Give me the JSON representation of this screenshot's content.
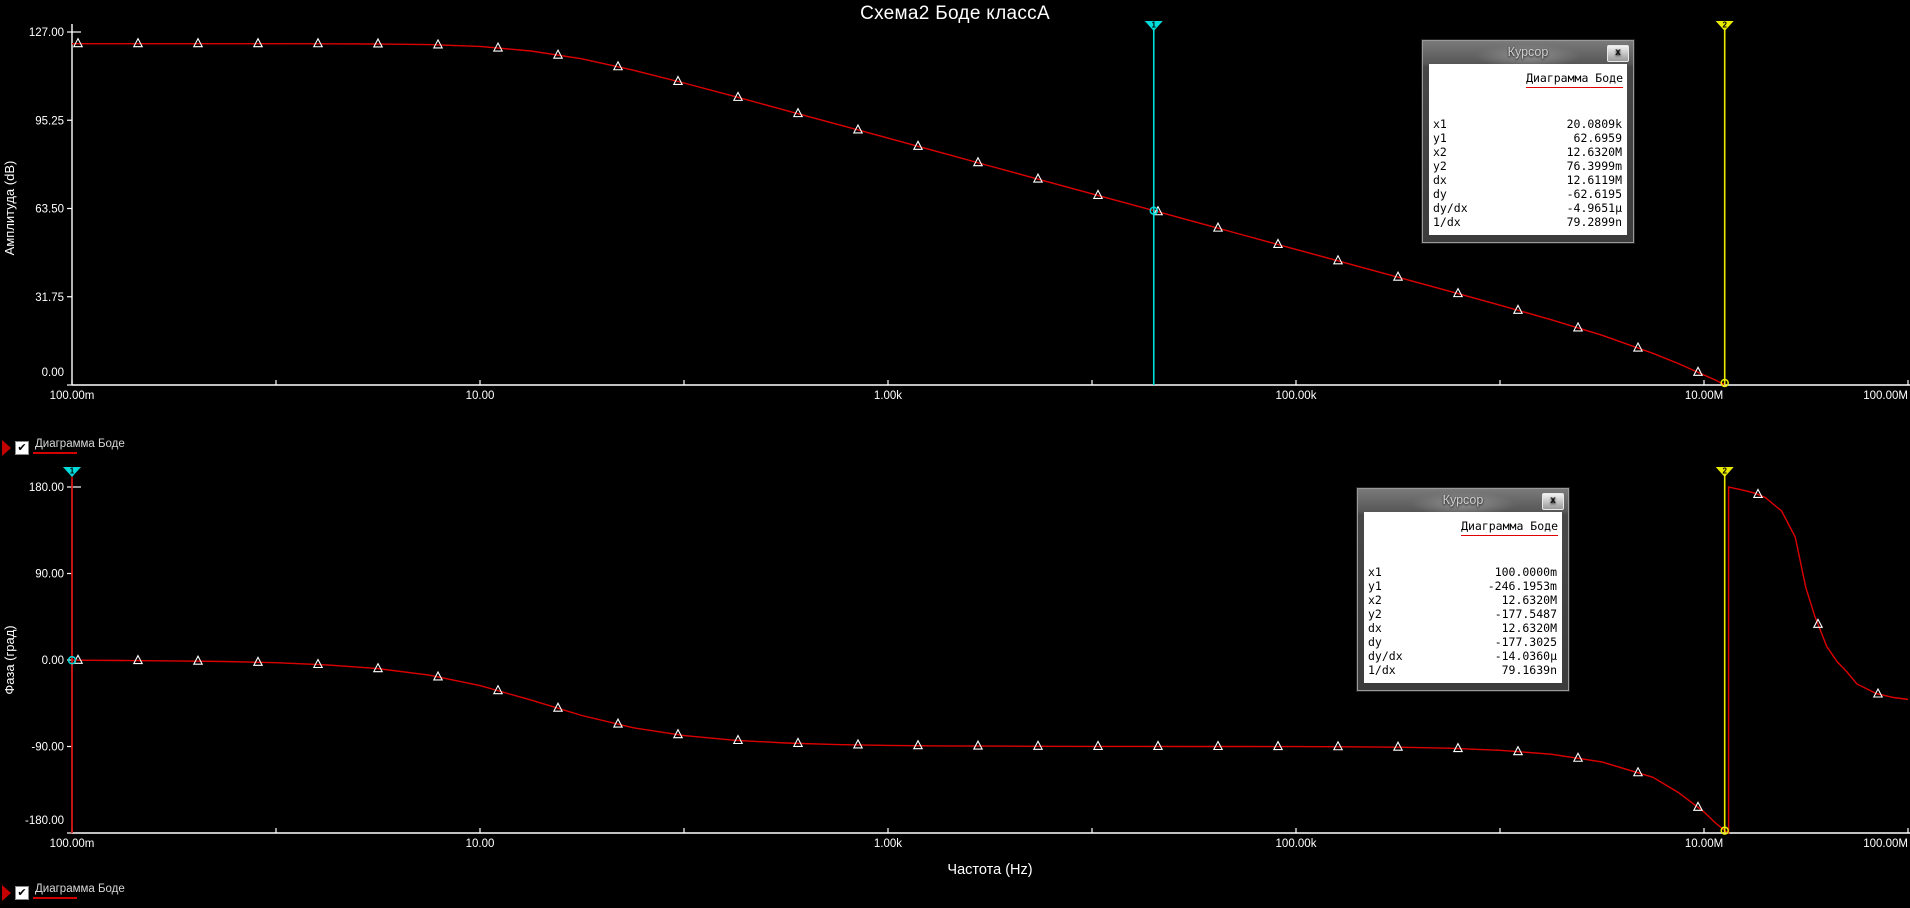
{
  "title": "Схема2 Боде классА",
  "colors": {
    "background": "#000000",
    "trace": "#dd0000",
    "axis": "#ffffff",
    "tick_text": "#ffffff",
    "marker": "#ffffff",
    "cursor1": "#00dcdc",
    "cursor2": "#ebeb00",
    "legend_underline": "#d40000"
  },
  "x_axis": {
    "label": "Частота (Hz)",
    "scale": "log",
    "min": 0.1,
    "max": 100000000,
    "decade_tick_exponents": [
      -1,
      0,
      1,
      2,
      3,
      4,
      5,
      6,
      7,
      8
    ],
    "labeled_ticks": [
      {
        "exp": -1,
        "label": "100.00m"
      },
      {
        "exp": 1,
        "label": "10.00"
      },
      {
        "exp": 3,
        "label": "1.00k"
      },
      {
        "exp": 5,
        "label": "100.00k"
      },
      {
        "exp": 7,
        "label": "10.00M"
      },
      {
        "exp": 8,
        "label": "100.00M"
      }
    ]
  },
  "legend": {
    "label": "Диаграмма Боде"
  },
  "chart_data": [
    {
      "type": "line",
      "name": "amplitude",
      "trace_name": "Диаграмма Боде",
      "ylabel": "Амплитуда (dB)",
      "xlabel": "Частота (Hz)",
      "x_scale": "log",
      "xlim": [
        0.1,
        100000000
      ],
      "ylim": [
        0,
        127
      ],
      "y_ticks": [
        {
          "v": 127,
          "label": "127.00"
        },
        {
          "v": 95.25,
          "label": "95.25"
        },
        {
          "v": 63.5,
          "label": "63.50"
        },
        {
          "v": 31.75,
          "label": "31.75"
        },
        {
          "v": 0,
          "label": "0.00"
        }
      ],
      "points": [
        [
          0.1,
          122.8
        ],
        [
          0.178,
          122.8
        ],
        [
          0.316,
          122.8
        ],
        [
          0.562,
          122.8
        ],
        [
          1,
          122.79
        ],
        [
          1.78,
          122.77
        ],
        [
          3.16,
          122.69
        ],
        [
          5.62,
          122.47
        ],
        [
          10,
          121.83
        ],
        [
          17.8,
          120.15
        ],
        [
          31.6,
          117.36
        ],
        [
          56.2,
          113.31
        ],
        [
          100,
          108.65
        ],
        [
          178,
          103.76
        ],
        [
          316,
          98.81
        ],
        [
          562,
          93.82
        ],
        [
          1000,
          88.82
        ],
        [
          1780,
          83.8
        ],
        [
          3160,
          78.8
        ],
        [
          5620,
          73.8
        ],
        [
          10000,
          68.8
        ],
        [
          17800,
          63.8
        ],
        [
          31600,
          58.8
        ],
        [
          56200,
          53.8
        ],
        [
          100000,
          48.8
        ],
        [
          178000,
          43.8
        ],
        [
          316000,
          38.8
        ],
        [
          562000,
          33.77
        ],
        [
          1000000,
          28.7
        ],
        [
          1780000,
          23.5
        ],
        [
          3160000,
          17.9
        ],
        [
          5620000,
          11.4
        ],
        [
          7500000,
          7.7
        ],
        [
          10000000,
          3.6
        ],
        [
          11300000,
          1.9
        ],
        [
          12632000,
          0.08
        ]
      ],
      "cursors": [
        {
          "id": 1,
          "f": 20080.9,
          "y": 62.6959,
          "triangle": "#00dcdc",
          "line": "#00dcdc",
          "glyph": "1"
        },
        {
          "id": 2,
          "f": 12632000,
          "y": 0.0764,
          "triangle": "#ebeb00",
          "line": "#ebeb00",
          "glyph": "2"
        }
      ]
    },
    {
      "type": "line",
      "name": "phase",
      "trace_name": "Диаграмма Боде",
      "ylabel": "Фаза (град)",
      "xlabel": "Частота (Hz)",
      "x_scale": "log",
      "xlim": [
        0.1,
        100000000
      ],
      "ylim": [
        -180,
        180
      ],
      "y_ticks": [
        {
          "v": 180,
          "label": "180.00"
        },
        {
          "v": 90,
          "label": "90.00"
        },
        {
          "v": 0,
          "label": "0.00"
        },
        {
          "v": -90,
          "label": "-90.00"
        },
        {
          "v": -180,
          "label": "-180.00"
        }
      ],
      "points": [
        [
          0.1,
          -0.25
        ],
        [
          0.178,
          -0.51
        ],
        [
          0.316,
          -0.91
        ],
        [
          0.562,
          -1.61
        ],
        [
          1,
          -2.86
        ],
        [
          1.78,
          -5.09
        ],
        [
          3.16,
          -8.98
        ],
        [
          5.62,
          -15.7
        ],
        [
          10,
          -26.6
        ],
        [
          17.8,
          -41.7
        ],
        [
          31.6,
          -57.7
        ],
        [
          56.2,
          -70.4
        ],
        [
          100,
          -78.7
        ],
        [
          178,
          -83.6
        ],
        [
          316,
          -86.4
        ],
        [
          562,
          -88
        ],
        [
          1000,
          -88.9
        ],
        [
          1780,
          -89.4
        ],
        [
          3160,
          -89.6
        ],
        [
          5620,
          -89.8
        ],
        [
          10000,
          -89.9
        ],
        [
          17800,
          -89.9
        ],
        [
          31600,
          -90
        ],
        [
          56200,
          -90
        ],
        [
          100000,
          -90.1
        ],
        [
          178000,
          -90.3
        ],
        [
          316000,
          -90.7
        ],
        [
          562000,
          -91.8
        ],
        [
          1000000,
          -94
        ],
        [
          1780000,
          -98
        ],
        [
          3160000,
          -106
        ],
        [
          5620000,
          -122
        ],
        [
          7500000,
          -138
        ],
        [
          10000000,
          -158
        ],
        [
          11300000,
          -169
        ],
        [
          12632000,
          -177.55
        ],
        [
          13200000,
          -180
        ],
        [
          13200000,
          180
        ],
        [
          14000000,
          178.8
        ],
        [
          15000000,
          177.5
        ],
        [
          17800000,
          173.5
        ],
        [
          20000000,
          169
        ],
        [
          24000000,
          155
        ],
        [
          28000000,
          128
        ],
        [
          31600000,
          75
        ],
        [
          35000000,
          45
        ],
        [
          40000000,
          14
        ],
        [
          45000000,
          -2
        ],
        [
          50000000,
          -12
        ],
        [
          56200000,
          -25
        ],
        [
          70000000,
          -35
        ],
        [
          85000000,
          -39
        ],
        [
          100000000,
          -41
        ]
      ],
      "cursors": [
        {
          "id": 1,
          "f": 0.1,
          "y": -0.2462,
          "triangle": "#00dcdc",
          "line": "#dd0000",
          "glyph": "1"
        },
        {
          "id": 2,
          "f": 12632000,
          "y": -177.5487,
          "triangle": "#ebeb00",
          "line": "#ebeb00",
          "glyph": "2"
        }
      ]
    }
  ],
  "cursor_windows": [
    {
      "title": "Курсор",
      "close_glyph": "x",
      "trace_header": "Диаграмма Боде",
      "rows": [
        {
          "label": "x1",
          "value": "20.0809k"
        },
        {
          "label": "y1",
          "value": "62.6959"
        },
        {
          "label": "x2",
          "value": "12.6320M"
        },
        {
          "label": "y2",
          "value": "76.3999m"
        },
        {
          "label": "dx",
          "value": "12.6119M"
        },
        {
          "label": "dy",
          "value": "-62.6195"
        },
        {
          "label": "dy/dx",
          "value": "-4.9651µ"
        },
        {
          "label": "1/dx",
          "value": "79.2899n"
        }
      ]
    },
    {
      "title": "Курсор",
      "close_glyph": "x",
      "trace_header": "Диаграмма Боде",
      "rows": [
        {
          "label": "x1",
          "value": "100.0000m"
        },
        {
          "label": "y1",
          "value": "-246.1953m"
        },
        {
          "label": "x2",
          "value": "12.6320M"
        },
        {
          "label": "y2",
          "value": "-177.5487"
        },
        {
          "label": "dx",
          "value": "12.6320M"
        },
        {
          "label": "dy",
          "value": "-177.3025"
        },
        {
          "label": "dy/dx",
          "value": "-14.0360µ"
        },
        {
          "label": "1/dx",
          "value": "79.1639n"
        }
      ]
    }
  ],
  "checkbox_glyph": "✔"
}
